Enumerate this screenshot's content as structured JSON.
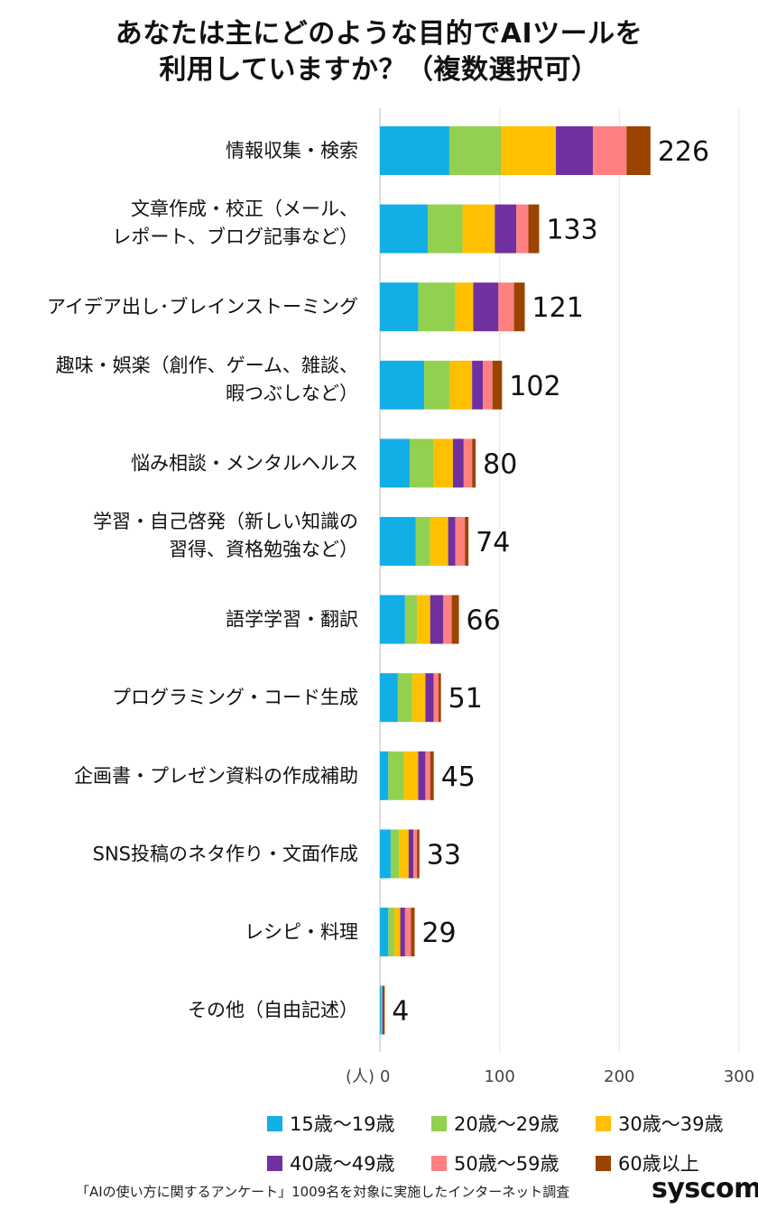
{
  "title": {
    "line1": "あなたは主にどのような目的でAIツールを",
    "line2": "利用していますか？（複数選択可）"
  },
  "chart_data": {
    "type": "bar",
    "orientation": "horizontal",
    "stacked": true,
    "categories": [
      [
        "情報収集・検索"
      ],
      [
        "文章作成・校正（メール、",
        "レポート、ブログ記事など）"
      ],
      [
        "アイデア出し･ブレインストーミング"
      ],
      [
        "趣味・娯楽（創作、ゲーム、雑談、",
        "暇つぶしなど）"
      ],
      [
        "悩み相談・メンタルヘルス"
      ],
      [
        "学習・自己啓発（新しい知識の",
        "習得、資格勉強など）"
      ],
      [
        "語学学習・翻訳"
      ],
      [
        "プログラミング・コード生成"
      ],
      [
        "企画書・プレゼン資料の作成補助"
      ],
      [
        "SNS投稿のネタ作り・文面作成"
      ],
      [
        "レシピ・料理"
      ],
      [
        "その他（自由記述）"
      ]
    ],
    "totals": [
      226,
      133,
      121,
      102,
      80,
      74,
      66,
      51,
      45,
      33,
      29,
      4
    ],
    "series": [
      {
        "name": "15歳〜19歳",
        "color": "#12aee6",
        "values": [
          58,
          40,
          32,
          37,
          25,
          30,
          21,
          15,
          7,
          9,
          7,
          1
        ]
      },
      {
        "name": "20歳〜29歳",
        "color": "#92d050",
        "values": [
          43,
          29,
          31,
          21,
          20,
          12,
          10,
          12,
          13,
          7,
          5,
          1
        ]
      },
      {
        "name": "30歳〜39歳",
        "color": "#ffc000",
        "values": [
          46,
          27,
          15,
          19,
          16,
          15,
          11,
          11,
          12,
          8,
          5,
          0
        ]
      },
      {
        "name": "40歳〜49歳",
        "color": "#7030a0",
        "values": [
          31,
          18,
          21,
          9,
          9,
          6,
          11,
          7,
          6,
          4,
          4,
          1
        ]
      },
      {
        "name": "50歳〜59歳",
        "color": "#ff8080",
        "values": [
          28,
          10,
          13,
          8,
          7,
          8,
          7,
          4,
          4,
          3,
          5,
          0
        ]
      },
      {
        "name": "60歳以上",
        "color": "#994400",
        "values": [
          20,
          9,
          9,
          8,
          3,
          3,
          6,
          2,
          3,
          2,
          3,
          1
        ]
      }
    ],
    "xlim": [
      0,
      300
    ],
    "xticks": [
      0,
      100,
      200,
      300
    ],
    "unit": "(人)",
    "grid": true,
    "legend_position": "bottom"
  },
  "footer": "「AIの使い方に関するアンケート」1009名を対象に実施したインターネット調査",
  "brand": "syscom"
}
